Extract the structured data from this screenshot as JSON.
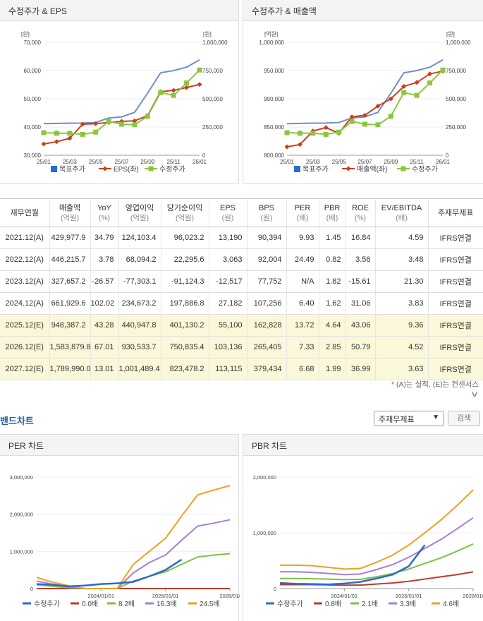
{
  "eps_chart": {
    "title": "수정주가 & EPS",
    "left_unit": "[원]",
    "right_unit": "[원]",
    "left_ticks": [
      "70,000",
      "60,000",
      "50,000",
      "40,000",
      "30,000"
    ],
    "right_ticks": [
      "1,000,000",
      "750,000",
      "500,000",
      "250,000",
      "0"
    ],
    "x_ticks": [
      "25/01",
      "25/03",
      "25/05",
      "25/07",
      "25/09",
      "25/11",
      "26/01"
    ],
    "legend": [
      "목표주가",
      "EPS(좌)",
      "수정주가"
    ]
  },
  "rev_chart": {
    "title": "수정주가 & 매출액",
    "left_unit": "[억원]",
    "right_unit": "[원]",
    "left_ticks": [
      "1,000,000",
      "950,000",
      "900,000",
      "850,000",
      "800,000"
    ],
    "right_ticks": [
      "1,000,000",
      "750,000",
      "500,000",
      "250,000",
      "0"
    ],
    "x_ticks": [
      "25/01",
      "25/03",
      "25/05",
      "25/07",
      "25/09",
      "25/11",
      "26/01"
    ],
    "legend": [
      "목표주가",
      "매출액(좌)",
      "수정주가"
    ]
  },
  "table": {
    "headers": [
      {
        "main": "재무연월",
        "sub": ""
      },
      {
        "main": "매출액",
        "sub": "(억원)"
      },
      {
        "main": "YoY",
        "sub": "(%)"
      },
      {
        "main": "영업이익",
        "sub": "(억원)"
      },
      {
        "main": "당기순이익",
        "sub": "(억원)"
      },
      {
        "main": "EPS",
        "sub": "(원)"
      },
      {
        "main": "BPS",
        "sub": "(원)"
      },
      {
        "main": "PER",
        "sub": "(배)"
      },
      {
        "main": "PBR",
        "sub": "(배)"
      },
      {
        "main": "ROE",
        "sub": "(%)"
      },
      {
        "main": "EV/EBITDA",
        "sub": "(배)"
      },
      {
        "main": "주재무제표",
        "sub": ""
      }
    ],
    "rows": [
      {
        "estimate": false,
        "cells": [
          "2021.12(A)",
          "429,977.9",
          "34.79",
          "124,103.4",
          "96,023.2",
          "13,190",
          "90,394",
          "9.93",
          "1.45",
          "16.84",
          "4.59",
          "IFRS연결"
        ]
      },
      {
        "estimate": false,
        "cells": [
          "2022.12(A)",
          "446,215.7",
          "3.78",
          "68,094.2",
          "22,295.6",
          "3,063",
          "92,004",
          "24.49",
          "0.82",
          "3.56",
          "3.48",
          "IFRS연결"
        ]
      },
      {
        "estimate": false,
        "cells": [
          "2023.12(A)",
          "327,657.2",
          "-26.57",
          "-77,303.1",
          "-91,124.3",
          "-12,517",
          "77,752",
          "N/A",
          "1.82",
          "-15.61",
          "21.30",
          "IFRS연결"
        ]
      },
      {
        "estimate": false,
        "cells": [
          "2024.12(A)",
          "661,929.6",
          "102.02",
          "234,673.2",
          "197,886.8",
          "27,182",
          "107,256",
          "6.40",
          "1.62",
          "31.06",
          "3.83",
          "IFRS연결"
        ]
      },
      {
        "estimate": true,
        "cells": [
          "2025.12(E)",
          "948,387.2",
          "43.28",
          "440,947.8",
          "401,130.2",
          "55,100",
          "162,828",
          "13.72",
          "4.64",
          "43.06",
          "9.36",
          "IFRS연결"
        ]
      },
      {
        "estimate": true,
        "cells": [
          "2026.12(E)",
          "1,583,879.8",
          "67.01",
          "930,533.7",
          "750,835.4",
          "103,136",
          "265,405",
          "7.33",
          "2.85",
          "50.79",
          "4.52",
          "IFRS연결"
        ]
      },
      {
        "estimate": true,
        "cells": [
          "2027.12(E)",
          "1,789,990.0",
          "13.01",
          "1,001,489.4",
          "823,478.2",
          "113,115",
          "379,434",
          "6.68",
          "1.99",
          "36.99",
          "3.63",
          "IFRS연결"
        ]
      }
    ],
    "footnote": "* (A)는 실적, (E)는 컨센서스"
  },
  "band": {
    "title": "밴드차트",
    "select_value": "주재무제표",
    "search_label": "검색"
  },
  "per_chart": {
    "title": "PER 차트",
    "y_ticks": [
      "3,000,000",
      "2,000,000",
      "1,000,000",
      "0"
    ],
    "x_ticks": [
      "2024/01/01",
      "2026/01/01",
      "2028/01/"
    ],
    "legend": [
      "수정주가",
      "0.0배",
      "8.2배",
      "16.3배",
      "24.5배"
    ]
  },
  "pbr_chart": {
    "title": "PBR 차트",
    "y_ticks": [
      "2,000,000",
      "1,000,000",
      "0"
    ],
    "x_ticks": [
      "2024/01/01",
      "2026/01/01",
      "2028/01/"
    ],
    "legend": [
      "수정주가",
      "0.8배",
      "2.1배",
      "3.3배",
      "4.6배"
    ]
  },
  "colors": {
    "target": "#6f8fc8",
    "eps": "#c8401c",
    "price": "#8cc63f",
    "band_price": "#2a6bd0",
    "band0": "#c0392b",
    "band1": "#7dc242",
    "band2": "#a67fd6",
    "band3": "#f0a020"
  },
  "chart_data": [
    {
      "type": "line",
      "title": "수정주가 & EPS",
      "x": [
        "25/01",
        "25/02",
        "25/03",
        "25/04",
        "25/05",
        "25/06",
        "25/07",
        "25/08",
        "25/09",
        "25/10",
        "25/11",
        "25/12",
        "26/01"
      ],
      "series": [
        {
          "name": "EPS(좌)",
          "axis": "left",
          "values": [
            34000,
            34800,
            36000,
            41000,
            41200,
            41600,
            42000,
            42200,
            44000,
            52500,
            53000,
            54000,
            55100
          ]
        },
        {
          "name": "목표주가",
          "axis": "right",
          "values": [
            280000,
            282000,
            284000,
            285000,
            290000,
            330000,
            340000,
            380000,
            550000,
            730000,
            750000,
            780000,
            845000
          ]
        },
        {
          "name": "수정주가",
          "axis": "right",
          "values": [
            200000,
            195000,
            195000,
            185000,
            205000,
            300000,
            275000,
            270000,
            345000,
            555000,
            530000,
            640000,
            755000
          ]
        }
      ],
      "ylim_left": [
        30000,
        70000
      ],
      "ylim_right": [
        0,
        1000000
      ]
    },
    {
      "type": "line",
      "title": "수정주가 & 매출액",
      "x": [
        "25/01",
        "25/02",
        "25/03",
        "25/04",
        "25/05",
        "25/06",
        "25/07",
        "25/08",
        "25/09",
        "25/10",
        "25/11",
        "25/12",
        "26/01"
      ],
      "series": [
        {
          "name": "매출액(좌)",
          "axis": "left",
          "values": [
            815000,
            819000,
            843000,
            849000,
            839000,
            868000,
            871000,
            887000,
            900000,
            922000,
            929000,
            944000,
            949000
          ]
        },
        {
          "name": "목표주가",
          "axis": "right",
          "values": [
            280000,
            282000,
            284000,
            285000,
            290000,
            330000,
            340000,
            380000,
            550000,
            730000,
            750000,
            780000,
            845000
          ]
        },
        {
          "name": "수정주가",
          "axis": "right",
          "values": [
            200000,
            195000,
            195000,
            185000,
            205000,
            300000,
            275000,
            270000,
            345000,
            555000,
            530000,
            640000,
            755000
          ]
        }
      ],
      "ylim_left": [
        800000,
        1000000
      ],
      "ylim_right": [
        0,
        1000000
      ]
    },
    {
      "type": "line",
      "title": "PER 차트",
      "x_years": [
        2022.0,
        2022.5,
        2023.0,
        2023.5,
        2024.0,
        2024.5,
        2025.0,
        2025.5,
        2026.0,
        2026.5,
        2027.0,
        2027.5,
        2028.0
      ],
      "series": [
        {
          "name": "0.0배",
          "values": [
            0,
            0,
            0,
            0,
            0,
            0,
            0,
            0,
            0,
            0,
            0,
            0,
            0
          ]
        },
        {
          "name": "8.2배",
          "values": [
            100000,
            60000,
            25000,
            0,
            0,
            0,
            200000,
            330000,
            450000,
            650000,
            850000,
            900000,
            940000
          ]
        },
        {
          "name": "16.3배",
          "values": [
            200000,
            120000,
            50000,
            0,
            0,
            0,
            420000,
            700000,
            900000,
            1300000,
            1680000,
            1760000,
            1850000
          ]
        },
        {
          "name": "24.5배",
          "values": [
            300000,
            170000,
            75000,
            0,
            0,
            0,
            650000,
            1000000,
            1350000,
            1950000,
            2520000,
            2650000,
            2770000
          ]
        },
        {
          "name": "수정주가",
          "values": [
            120000,
            100000,
            60000,
            80000,
            120000,
            140000,
            180000,
            330000,
            500000,
            780000,
            null,
            null,
            null
          ]
        }
      ],
      "ylim": [
        0,
        3000000
      ]
    },
    {
      "type": "line",
      "title": "PBR 차트",
      "x_years": [
        2022.0,
        2022.5,
        2023.0,
        2023.5,
        2024.0,
        2024.5,
        2025.0,
        2025.5,
        2026.0,
        2026.5,
        2027.0,
        2027.5,
        2028.0
      ],
      "series": [
        {
          "name": "0.8배",
          "values": [
            70000,
            70000,
            70000,
            65000,
            60000,
            62000,
            80000,
            100000,
            130000,
            170000,
            210000,
            250000,
            300000
          ]
        },
        {
          "name": "2.1배",
          "values": [
            180000,
            180000,
            175000,
            170000,
            160000,
            165000,
            210000,
            270000,
            350000,
            450000,
            550000,
            670000,
            800000
          ]
        },
        {
          "name": "3.3배",
          "values": [
            300000,
            300000,
            290000,
            270000,
            250000,
            260000,
            340000,
            430000,
            560000,
            720000,
            880000,
            1070000,
            1270000
          ]
        },
        {
          "name": "4.6배",
          "values": [
            420000,
            420000,
            410000,
            380000,
            350000,
            360000,
            470000,
            600000,
            780000,
            1000000,
            1230000,
            1490000,
            1770000
          ]
        },
        {
          "name": "수정주가",
          "values": [
            100000,
            85000,
            80000,
            75000,
            90000,
            120000,
            180000,
            250000,
            400000,
            780000,
            null,
            null,
            null
          ]
        }
      ],
      "ylim": [
        0,
        2000000
      ]
    }
  ]
}
